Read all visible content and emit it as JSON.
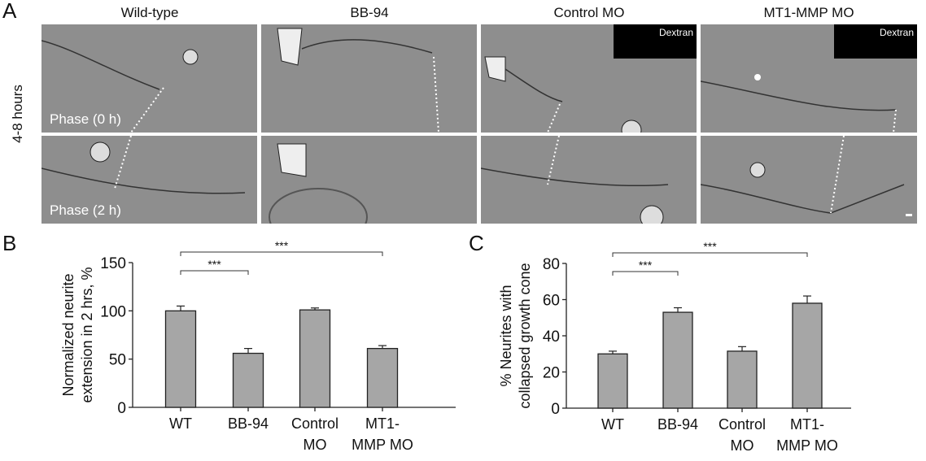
{
  "panel_a": {
    "label": "A",
    "row_label": "4-8 hours",
    "columns": [
      "Wild-type",
      "BB-94",
      "Control MO",
      "MT1-MMP MO"
    ],
    "row_phase_labels": [
      "Phase (0 h)",
      "Phase (2 h)"
    ],
    "inset_label": "Dextran"
  },
  "chart_data": [
    {
      "panel": "B",
      "type": "bar",
      "title": "",
      "categories": [
        "WT",
        "BB-94",
        "Control\nMO",
        "MT1-\nMMP MO"
      ],
      "category_lines": [
        [
          "WT"
        ],
        [
          "BB-94"
        ],
        [
          "Control",
          "MO"
        ],
        [
          "MT1-",
          "MMP MO"
        ]
      ],
      "values": [
        100,
        56,
        101,
        61
      ],
      "errors": [
        5,
        5,
        2,
        3
      ],
      "ylabel_lines": [
        "Normalized neurite",
        "extension in 2 hrs, %"
      ],
      "xlabel": "",
      "ylim": [
        0,
        150
      ],
      "yticks": [
        0,
        50,
        100,
        150
      ],
      "significance": [
        {
          "from": 0,
          "to": 1,
          "label": "***"
        },
        {
          "from": 0,
          "to": 3,
          "label": "***"
        }
      ],
      "bar_color": "#a6a6a6"
    },
    {
      "panel": "C",
      "type": "bar",
      "title": "",
      "categories": [
        "WT",
        "BB-94",
        "Control\nMO",
        "MT1-\nMMP MO"
      ],
      "category_lines": [
        [
          "WT"
        ],
        [
          "BB-94"
        ],
        [
          "Control",
          "MO"
        ],
        [
          "MT1-",
          "MMP MO"
        ]
      ],
      "values": [
        30,
        53,
        31.5,
        58
      ],
      "errors": [
        1.5,
        2.5,
        2.5,
        4
      ],
      "ylabel_lines": [
        "% Neurites with",
        "collapsed growth cone"
      ],
      "xlabel": "",
      "ylim": [
        0,
        80
      ],
      "yticks": [
        0,
        20,
        40,
        60,
        80
      ],
      "significance": [
        {
          "from": 0,
          "to": 1,
          "label": "***"
        },
        {
          "from": 0,
          "to": 3,
          "label": "***"
        }
      ],
      "bar_color": "#a6a6a6"
    }
  ]
}
